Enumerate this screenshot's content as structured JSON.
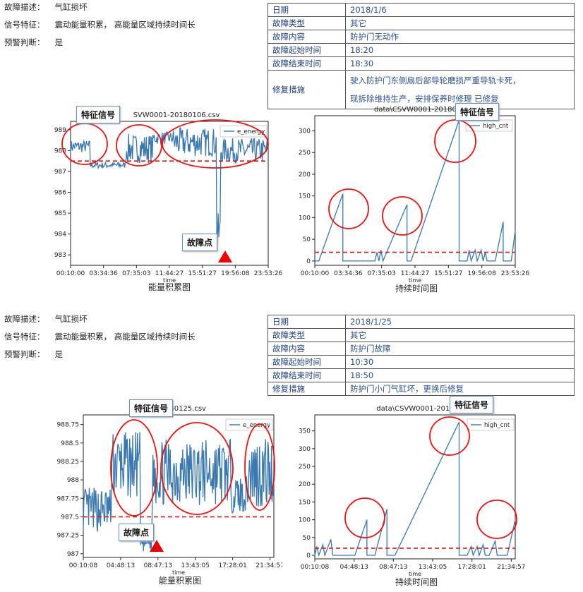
{
  "labels": {
    "fault_desc": "故障描述：",
    "signal_feature": "信号特征：",
    "warning": "预警判断：",
    "energy_caption": "能量积累图",
    "duration_caption": "持续时间图",
    "feature_callout": "特征信号",
    "fault_point": "故障点",
    "xlabel": "time",
    "legend_energy": "e_energy",
    "legend_high": "high_cnt"
  },
  "cases": [
    {
      "fault_desc": "气缸损坏",
      "signal_feature": "震动能量积累， 高能量区域持续时间长",
      "warning": "是",
      "table": [
        {
          "k": "日期",
          "v": "2018/1/6"
        },
        {
          "k": "故障类型",
          "v": "其它"
        },
        {
          "k": "故障内容",
          "v": "防护门无动作"
        },
        {
          "k": "故障起始时间",
          "v": "18:20"
        },
        {
          "k": "故障结束时间",
          "v": "18:30"
        },
        {
          "k": "修复措施",
          "v": "驶入防护门东侧扇后部导轮磨损严重导轨卡死，",
          "v2": "现拆除维持生产，安排保养时修理 已修复"
        }
      ],
      "energy_title": "SVW0001-20180106.csv",
      "duration_title": "data\\CSVW0001-20180106"
    },
    {
      "fault_desc": "气缸损坏",
      "signal_feature": "震动能量积累， 高能量区域持续时间长",
      "warning": "是",
      "table": [
        {
          "k": "日期",
          "v": "2018/1/25"
        },
        {
          "k": "故障类型",
          "v": "其它"
        },
        {
          "k": "故障内容",
          "v": "防护门故障"
        },
        {
          "k": "故障起始时间",
          "v": "10:30"
        },
        {
          "k": "故障结束时间",
          "v": "18:50"
        },
        {
          "k": "修复措施",
          "v": "防护门小门气缸坏，更换后修复"
        }
      ],
      "energy_title": "180125.csv",
      "duration_title": "data\\CSVW0001-2018012"
    }
  ],
  "chart_data": [
    {
      "type": "line",
      "name_hint": "energy-1",
      "x_ticks": [
        "00:10:00",
        "03:34:36",
        "07:35:03",
        "11:44:27",
        "15:51:27",
        "19:56:08",
        "23:53:26"
      ],
      "y_ticks": [
        983,
        984,
        985,
        986,
        987,
        988,
        989
      ],
      "ylim": [
        982.5,
        989.4
      ],
      "threshold": 987.5,
      "legend": "e_energy",
      "line_color": "#3a78b0",
      "threshold_color": "#d11a1a"
    },
    {
      "type": "line",
      "name_hint": "duration-1",
      "x_ticks": [
        "00:10:00",
        "03:34:36",
        "07:35:03",
        "11:44:27",
        "15:51:27",
        "19:56:08",
        "23:53:26"
      ],
      "y_ticks": [
        0,
        50,
        100,
        150,
        200,
        250,
        300
      ],
      "ylim": [
        -10,
        335
      ],
      "threshold": 20,
      "legend": "high_cnt",
      "line_color": "#3a78b0",
      "threshold_color": "#d11a1a"
    },
    {
      "type": "line",
      "name_hint": "energy-2",
      "x_ticks": [
        "00:10:08",
        "04:48:13",
        "08:47:13",
        "13:43:05",
        "17:28:01",
        "21:34:57"
      ],
      "y_ticks": [
        987.0,
        987.25,
        987.5,
        987.75,
        988.0,
        988.25,
        988.5,
        988.75
      ],
      "ylim": [
        986.95,
        988.88
      ],
      "threshold": 987.5,
      "legend": "e_energy",
      "line_color": "#3a78b0",
      "threshold_color": "#d11a1a"
    },
    {
      "type": "line",
      "name_hint": "duration-2",
      "x_ticks": [
        "00:10:08",
        "04:48:13",
        "08:47:13",
        "13:43:05",
        "17:28:01",
        "21:34:57"
      ],
      "y_ticks": [
        0,
        50,
        100,
        150,
        200,
        250,
        300,
        350
      ],
      "ylim": [
        -10,
        395
      ],
      "threshold": 20,
      "legend": "high_cnt",
      "line_color": "#3a78b0",
      "threshold_color": "#d11a1a"
    }
  ]
}
